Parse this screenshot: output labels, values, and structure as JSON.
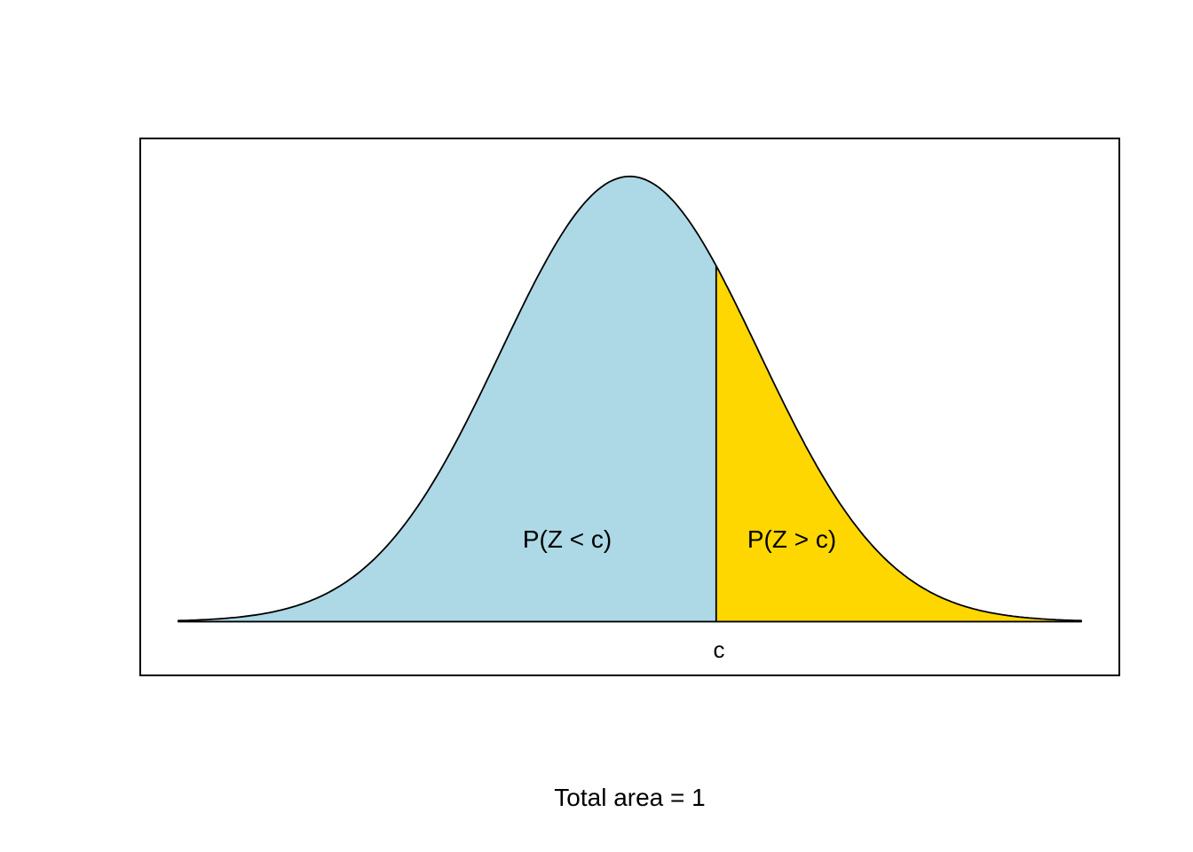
{
  "chart_data": {
    "type": "area",
    "title": "",
    "caption": "Total area = 1",
    "distribution": "standard-normal-density",
    "xlabel": "",
    "ylabel": "",
    "axes": "none",
    "legend": "none",
    "z_min": -3.5,
    "z_max": 3.5,
    "cutoff": 0.67,
    "cutoff_label": "c",
    "outline_color": "#000000",
    "background_color": "#FFFFFF",
    "regions": [
      {
        "name": "left-of-cutoff",
        "label": "P(Z < c)",
        "color": "#ADD8E6"
      },
      {
        "name": "right-of-cutoff",
        "label": "P(Z > c)",
        "color": "#FFD700"
      }
    ]
  }
}
